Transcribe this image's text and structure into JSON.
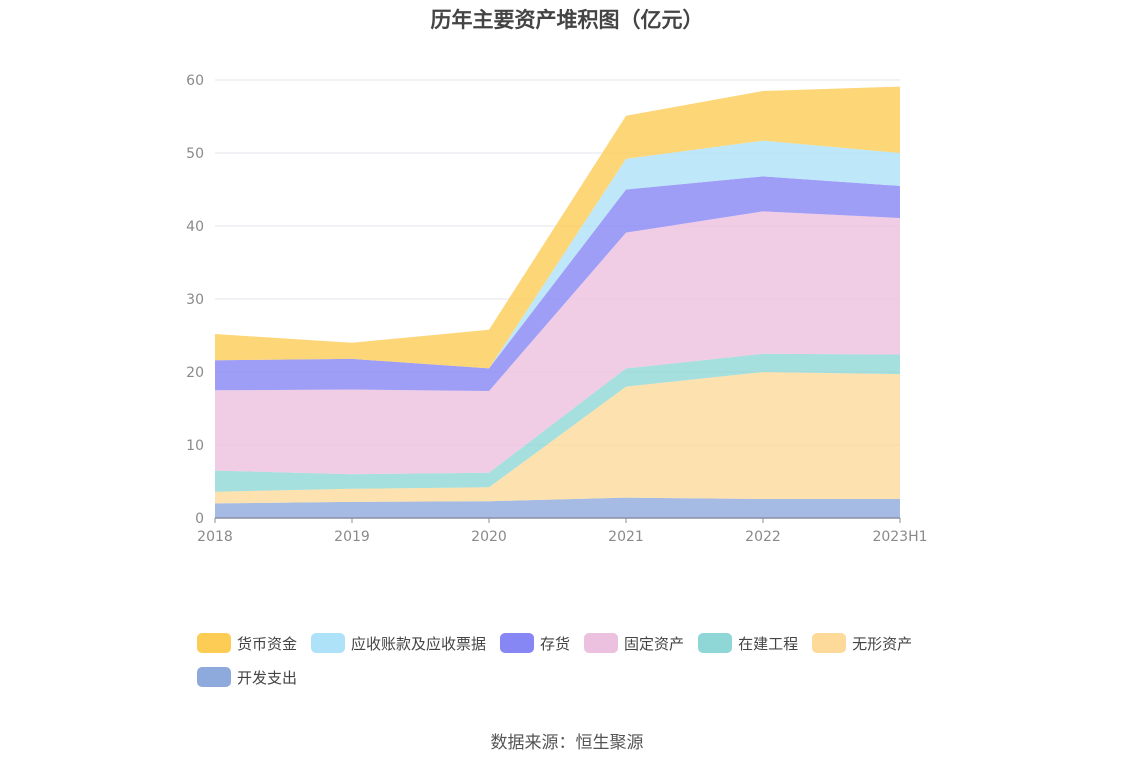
{
  "title": "历年主要资产堆积图（亿元）",
  "source": "数据来源：恒生聚源",
  "chart_data": {
    "type": "area",
    "stacked": true,
    "categories": [
      "2018",
      "2019",
      "2020",
      "2021",
      "2022",
      "2023H1"
    ],
    "ylim": [
      0,
      60
    ],
    "yticks": [
      0,
      10,
      20,
      30,
      40,
      50,
      60
    ],
    "grid": true,
    "legend_position": "bottom",
    "series": [
      {
        "name": "开发支出",
        "color": "#8eaadc",
        "values": [
          2.0,
          2.2,
          2.3,
          2.8,
          2.6,
          2.6
        ]
      },
      {
        "name": "无形资产",
        "color": "#fdd99a",
        "values": [
          1.6,
          1.8,
          1.9,
          15.2,
          17.4,
          17.1
        ]
      },
      {
        "name": "在建工程",
        "color": "#8fd7d6",
        "values": [
          2.9,
          2.0,
          2.0,
          2.5,
          2.5,
          2.7
        ]
      },
      {
        "name": "固定资产",
        "color": "#ecc1df",
        "values": [
          11.0,
          11.6,
          11.2,
          18.6,
          19.5,
          18.7
        ]
      },
      {
        "name": "存货",
        "color": "#8686f5",
        "values": [
          4.1,
          4.2,
          3.1,
          5.9,
          4.8,
          4.4
        ]
      },
      {
        "name": "应收账款及应收票据",
        "color": "#aee2f8",
        "values": [
          0.0,
          0.0,
          0.0,
          4.2,
          4.9,
          4.5
        ]
      },
      {
        "name": "货币资金",
        "color": "#fdcc55",
        "values": [
          3.6,
          2.2,
          5.3,
          5.9,
          6.8,
          9.1
        ]
      }
    ]
  },
  "legend_order": [
    "货币资金",
    "应收账款及应收票据",
    "存货",
    "固定资产",
    "在建工程",
    "无形资产",
    "开发支出"
  ]
}
